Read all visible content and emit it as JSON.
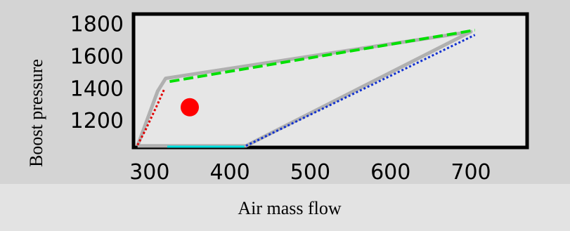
{
  "chart_data": {
    "type": "line",
    "xlabel": "Air mass flow",
    "ylabel": "Boost pressure",
    "xlim": [
      280,
      770
    ],
    "ylim": [
      1030,
      1860
    ],
    "x_ticks": [
      300,
      400,
      500,
      600,
      700
    ],
    "y_ticks": [
      1200,
      1400,
      1600,
      1800
    ],
    "grid": false,
    "series": [
      {
        "color": "#b0b0b0",
        "style": "thick",
        "x": [
          285,
          310,
          320,
          700,
          420,
          285
        ],
        "y": [
          1040,
          1380,
          1460,
          1750,
          1040,
          1040
        ]
      },
      {
        "color": "#00e000",
        "style": "dashed",
        "x": [
          325,
          705
        ],
        "y": [
          1440,
          1760
        ]
      },
      {
        "color": "#1030d0",
        "style": "dotted",
        "x": [
          420,
          705
        ],
        "y": [
          1040,
          1730
        ]
      },
      {
        "color": "#00e0e0",
        "style": "solid",
        "x": [
          322,
          418
        ],
        "y": [
          1035,
          1035
        ]
      },
      {
        "color": "#e00000",
        "style": "dotted",
        "x": [
          285,
          295,
          310,
          318
        ],
        "y": [
          1045,
          1140,
          1300,
          1390
        ]
      }
    ],
    "points": [
      {
        "x": 350,
        "y": 1280,
        "color": "#ff0000"
      }
    ]
  }
}
